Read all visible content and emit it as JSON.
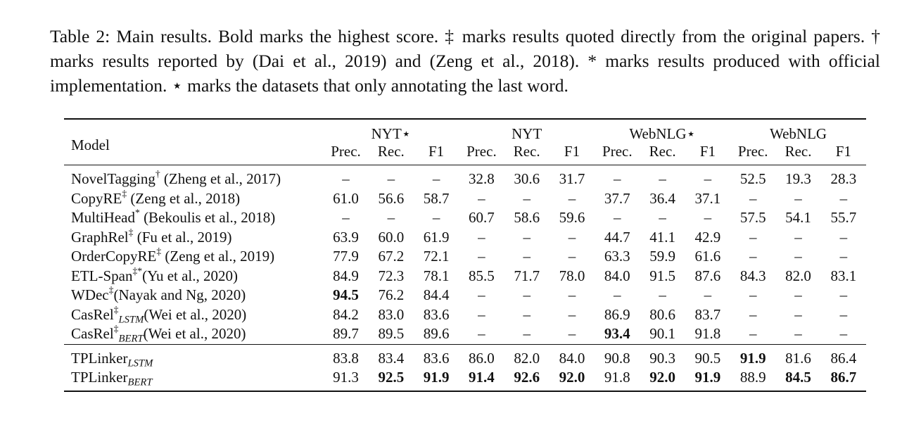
{
  "caption": "Table 2: Main results. Bold marks the highest score. ‡ marks results quoted directly from the original papers. † marks results reported by (Dai et al., 2019) and (Zeng et al., 2018). * marks results produced with official implementation. ⋆ marks the datasets that only annotating the last word.",
  "table": {
    "model_header": "Model",
    "groups": [
      "NYT⋆",
      "NYT",
      "WebNLG⋆",
      "WebNLG"
    ],
    "metrics": [
      "Prec.",
      "Rec.",
      "F1"
    ],
    "rows_baselines": [
      {
        "name": "NovelTagging",
        "sup": "†",
        "sub": "",
        "cite": " (Zheng et al., 2017)",
        "cells": [
          "–",
          "–",
          "–",
          "32.8",
          "30.6",
          "31.7",
          "–",
          "–",
          "–",
          "52.5",
          "19.3",
          "28.3"
        ],
        "bold": []
      },
      {
        "name": "CopyRE",
        "sup": "‡",
        "sub": "",
        "cite": " (Zeng et al., 2018)",
        "cells": [
          "61.0",
          "56.6",
          "58.7",
          "–",
          "–",
          "–",
          "37.7",
          "36.4",
          "37.1",
          "–",
          "–",
          "–"
        ],
        "bold": []
      },
      {
        "name": "MultiHead",
        "sup": "*",
        "sub": "",
        "cite": " (Bekoulis et al., 2018)",
        "cells": [
          "–",
          "–",
          "–",
          "60.7",
          "58.6",
          "59.6",
          "–",
          "–",
          "–",
          "57.5",
          "54.1",
          "55.7"
        ],
        "bold": []
      },
      {
        "name": "GraphRel",
        "sup": "‡",
        "sub": "",
        "cite": " (Fu et al., 2019)",
        "cells": [
          "63.9",
          "60.0",
          "61.9",
          "–",
          "–",
          "–",
          "44.7",
          "41.1",
          "42.9",
          "–",
          "–",
          "–"
        ],
        "bold": []
      },
      {
        "name": "OrderCopyRE",
        "sup": "‡",
        "sub": "",
        "cite": " (Zeng et al., 2019)",
        "cells": [
          "77.9",
          "67.2",
          "72.1",
          "–",
          "–",
          "–",
          "63.3",
          "59.9",
          "61.6",
          "–",
          "–",
          "–"
        ],
        "bold": []
      },
      {
        "name": "ETL-Span",
        "sup": "‡*",
        "sub": "",
        "cite": "(Yu et al., 2020)",
        "cells": [
          "84.9",
          "72.3",
          "78.1",
          "85.5",
          "71.7",
          "78.0",
          "84.0",
          "91.5",
          "87.6",
          "84.3",
          "82.0",
          "83.1"
        ],
        "bold": []
      },
      {
        "name": "WDec",
        "sup": "‡",
        "sub": "",
        "cite": "(Nayak and Ng, 2020)",
        "cells": [
          "94.5",
          "76.2",
          "84.4",
          "–",
          "–",
          "–",
          "–",
          "–",
          "–",
          "–",
          "–",
          "–"
        ],
        "bold": [
          0
        ]
      },
      {
        "name": "CasRel",
        "sup": "‡",
        "sub": "LSTM",
        "cite": "(Wei et al., 2020)",
        "cells": [
          "84.2",
          "83.0",
          "83.6",
          "–",
          "–",
          "–",
          "86.9",
          "80.6",
          "83.7",
          "–",
          "–",
          "–"
        ],
        "bold": []
      },
      {
        "name": "CasRel",
        "sup": "‡",
        "sub": "BERT",
        "cite": "(Wei et al., 2020)",
        "cells": [
          "89.7",
          "89.5",
          "89.6",
          "–",
          "–",
          "–",
          "93.4",
          "90.1",
          "91.8",
          "–",
          "–",
          "–"
        ],
        "bold": [
          6
        ]
      }
    ],
    "rows_ours": [
      {
        "name": "TPLinker",
        "sup": "",
        "sub": "LSTM",
        "cite": "",
        "cells": [
          "83.8",
          "83.4",
          "83.6",
          "86.0",
          "82.0",
          "84.0",
          "90.8",
          "90.3",
          "90.5",
          "91.9",
          "81.6",
          "86.4"
        ],
        "bold": [
          9
        ]
      },
      {
        "name": "TPLinker",
        "sup": "",
        "sub": "BERT",
        "cite": "",
        "cells": [
          "91.3",
          "92.5",
          "91.9",
          "91.4",
          "92.6",
          "92.0",
          "91.8",
          "92.0",
          "91.9",
          "88.9",
          "84.5",
          "86.7"
        ],
        "bold": [
          1,
          2,
          3,
          4,
          5,
          7,
          8,
          10,
          11
        ]
      }
    ]
  }
}
